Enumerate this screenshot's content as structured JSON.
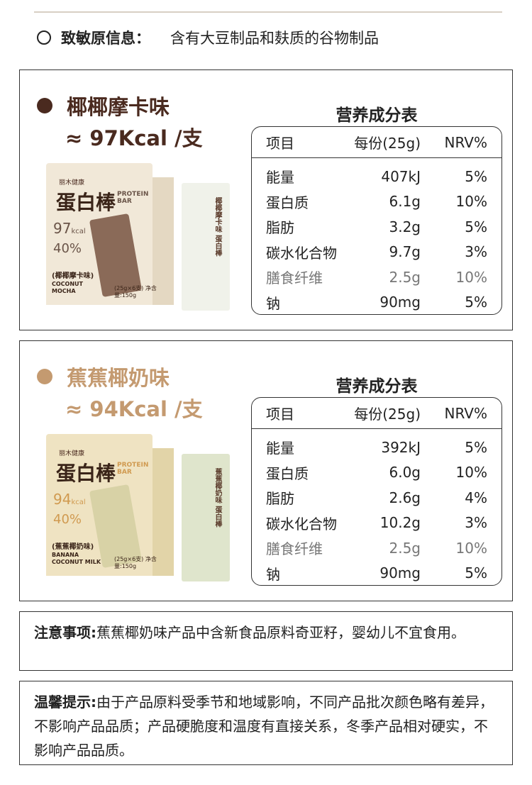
{
  "allergen": {
    "label": "致敏原信息：",
    "text": "含有大豆制品和麸质的谷物制品"
  },
  "products": [
    {
      "flavor": "椰椰摩卡味",
      "kcal": "≈ 97Kcal /支",
      "color": "#4a2a1f",
      "pkg": {
        "brand": "丽木健康",
        "name": "蛋白棒",
        "pb": "PROTEIN BAR",
        "cal": "97",
        "unit": "kcal",
        "pct": "40%",
        "flav": "(椰椰摩卡味)",
        "en": "COCONUT MOCHA",
        "wt": "(25g×6支) 净含量:150g",
        "stick": "椰椰摩卡味 蛋白棒"
      },
      "table": {
        "title": "营养成分表",
        "headers": [
          "项目",
          "每份(25g)",
          "NRV%"
        ],
        "rows": [
          [
            "能量",
            "407kJ",
            "5%"
          ],
          [
            "蛋白质",
            "6.1g",
            "10%"
          ],
          [
            "脂肪",
            "3.2g",
            "5%"
          ],
          [
            "碳水化合物",
            "9.7g",
            "3%"
          ],
          [
            "膳食纤维",
            "2.5g",
            "10%"
          ],
          [
            "钠",
            "90mg",
            "5%"
          ]
        ]
      }
    },
    {
      "flavor": "蕉蕉椰奶味",
      "kcal": "≈ 94Kcal /支",
      "color": "#c49a70",
      "pkg": {
        "brand": "丽木健康",
        "name": "蛋白棒",
        "pb": "PROTEIN BAR",
        "cal": "94",
        "unit": "kcal",
        "pct": "40%",
        "flav": "(蕉蕉椰奶味)",
        "en": "BANANA COCONUT MILK",
        "wt": "(25g×6支) 净含量:150g",
        "stick": "蕉蕉椰奶味 蛋白棒"
      },
      "table": {
        "title": "营养成分表",
        "headers": [
          "项目",
          "每份(25g)",
          "NRV%"
        ],
        "rows": [
          [
            "能量",
            "392kJ",
            "5%"
          ],
          [
            "蛋白质",
            "6.0g",
            "10%"
          ],
          [
            "脂肪",
            "2.6g",
            "4%"
          ],
          [
            "碳水化合物",
            "10.2g",
            "3%"
          ],
          [
            "膳食纤维",
            "2.5g",
            "10%"
          ],
          [
            "钠",
            "90mg",
            "5%"
          ]
        ]
      }
    }
  ],
  "notice": {
    "label": "注意事项:",
    "text": "蕉蕉椰奶味产品中含新食品原料奇亚籽，婴幼儿不宜食用。"
  },
  "tip": {
    "label": "温馨提示:",
    "text": "由于产品原料受季节和地域影响，不同产品批次颜色略有差异，不影响产品品质；产品硬脆度和温度有直接关系，冬季产品相对硬实，不影响产品品质。"
  }
}
